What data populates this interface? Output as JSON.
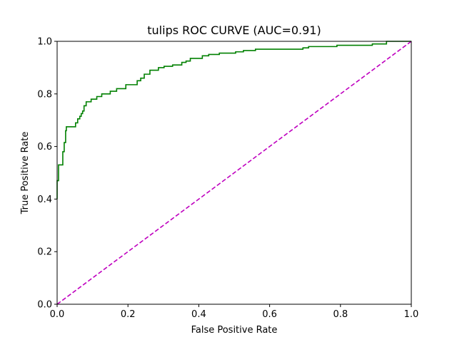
{
  "chart_data": {
    "type": "line",
    "title": "tulips ROC CURVE (AUC=0.91)",
    "xlabel": "False Positive Rate",
    "ylabel": "True Positive Rate",
    "xlim": [
      0.0,
      1.0
    ],
    "ylim": [
      0.0,
      1.0
    ],
    "xticks": [
      0.0,
      0.2,
      0.4,
      0.6,
      0.8,
      1.0
    ],
    "yticks": [
      0.0,
      0.2,
      0.4,
      0.6,
      0.8,
      1.0
    ],
    "xtick_labels": [
      "0.0",
      "0.2",
      "0.4",
      "0.6",
      "0.8",
      "1.0"
    ],
    "ytick_labels": [
      "0.0",
      "0.2",
      "0.4",
      "0.6",
      "0.8",
      "1.0"
    ],
    "grid": false,
    "legend": false,
    "series": [
      {
        "style": "solid",
        "color": "#008000",
        "x": [
          0.0,
          0.0,
          0.004,
          0.004,
          0.006,
          0.006,
          0.016,
          0.016,
          0.02,
          0.02,
          0.024,
          0.024,
          0.026,
          0.026,
          0.03,
          0.03,
          0.034,
          0.034,
          0.052,
          0.052,
          0.058,
          0.058,
          0.064,
          0.064,
          0.068,
          0.068,
          0.072,
          0.072,
          0.076,
          0.076,
          0.082,
          0.082,
          0.086,
          0.086,
          0.096,
          0.096,
          0.112,
          0.112,
          0.126,
          0.126,
          0.15,
          0.15,
          0.168,
          0.168,
          0.194,
          0.194,
          0.2,
          0.2,
          0.226,
          0.226,
          0.236,
          0.236,
          0.246,
          0.246,
          0.262,
          0.262,
          0.286,
          0.286,
          0.302,
          0.302,
          0.326,
          0.326,
          0.352,
          0.352,
          0.364,
          0.364,
          0.376,
          0.376,
          0.41,
          0.41,
          0.428,
          0.428,
          0.458,
          0.458,
          0.504,
          0.504,
          0.526,
          0.526,
          0.56,
          0.56,
          0.694,
          0.694,
          0.71,
          0.71,
          0.79,
          0.79,
          0.89,
          0.89,
          0.93,
          0.93,
          1.0
        ],
        "y": [
          0.4,
          0.47,
          0.47,
          0.53,
          0.53,
          0.53,
          0.53,
          0.58,
          0.58,
          0.615,
          0.615,
          0.66,
          0.66,
          0.675,
          0.675,
          0.675,
          0.675,
          0.675,
          0.675,
          0.69,
          0.69,
          0.705,
          0.705,
          0.715,
          0.715,
          0.725,
          0.725,
          0.735,
          0.735,
          0.755,
          0.755,
          0.77,
          0.77,
          0.77,
          0.77,
          0.78,
          0.78,
          0.79,
          0.79,
          0.8,
          0.8,
          0.81,
          0.81,
          0.82,
          0.82,
          0.835,
          0.835,
          0.835,
          0.835,
          0.85,
          0.85,
          0.86,
          0.86,
          0.875,
          0.875,
          0.89,
          0.89,
          0.9,
          0.9,
          0.905,
          0.905,
          0.91,
          0.91,
          0.92,
          0.92,
          0.925,
          0.925,
          0.935,
          0.935,
          0.945,
          0.945,
          0.95,
          0.95,
          0.955,
          0.955,
          0.96,
          0.96,
          0.965,
          0.965,
          0.97,
          0.97,
          0.975,
          0.975,
          0.98,
          0.98,
          0.985,
          0.985,
          0.99,
          0.99,
          1.0,
          1.0
        ]
      },
      {
        "style": "dashed",
        "color": "#bf00bf",
        "x": [
          0.0,
          1.0
        ],
        "y": [
          0.0,
          1.0
        ]
      }
    ]
  }
}
